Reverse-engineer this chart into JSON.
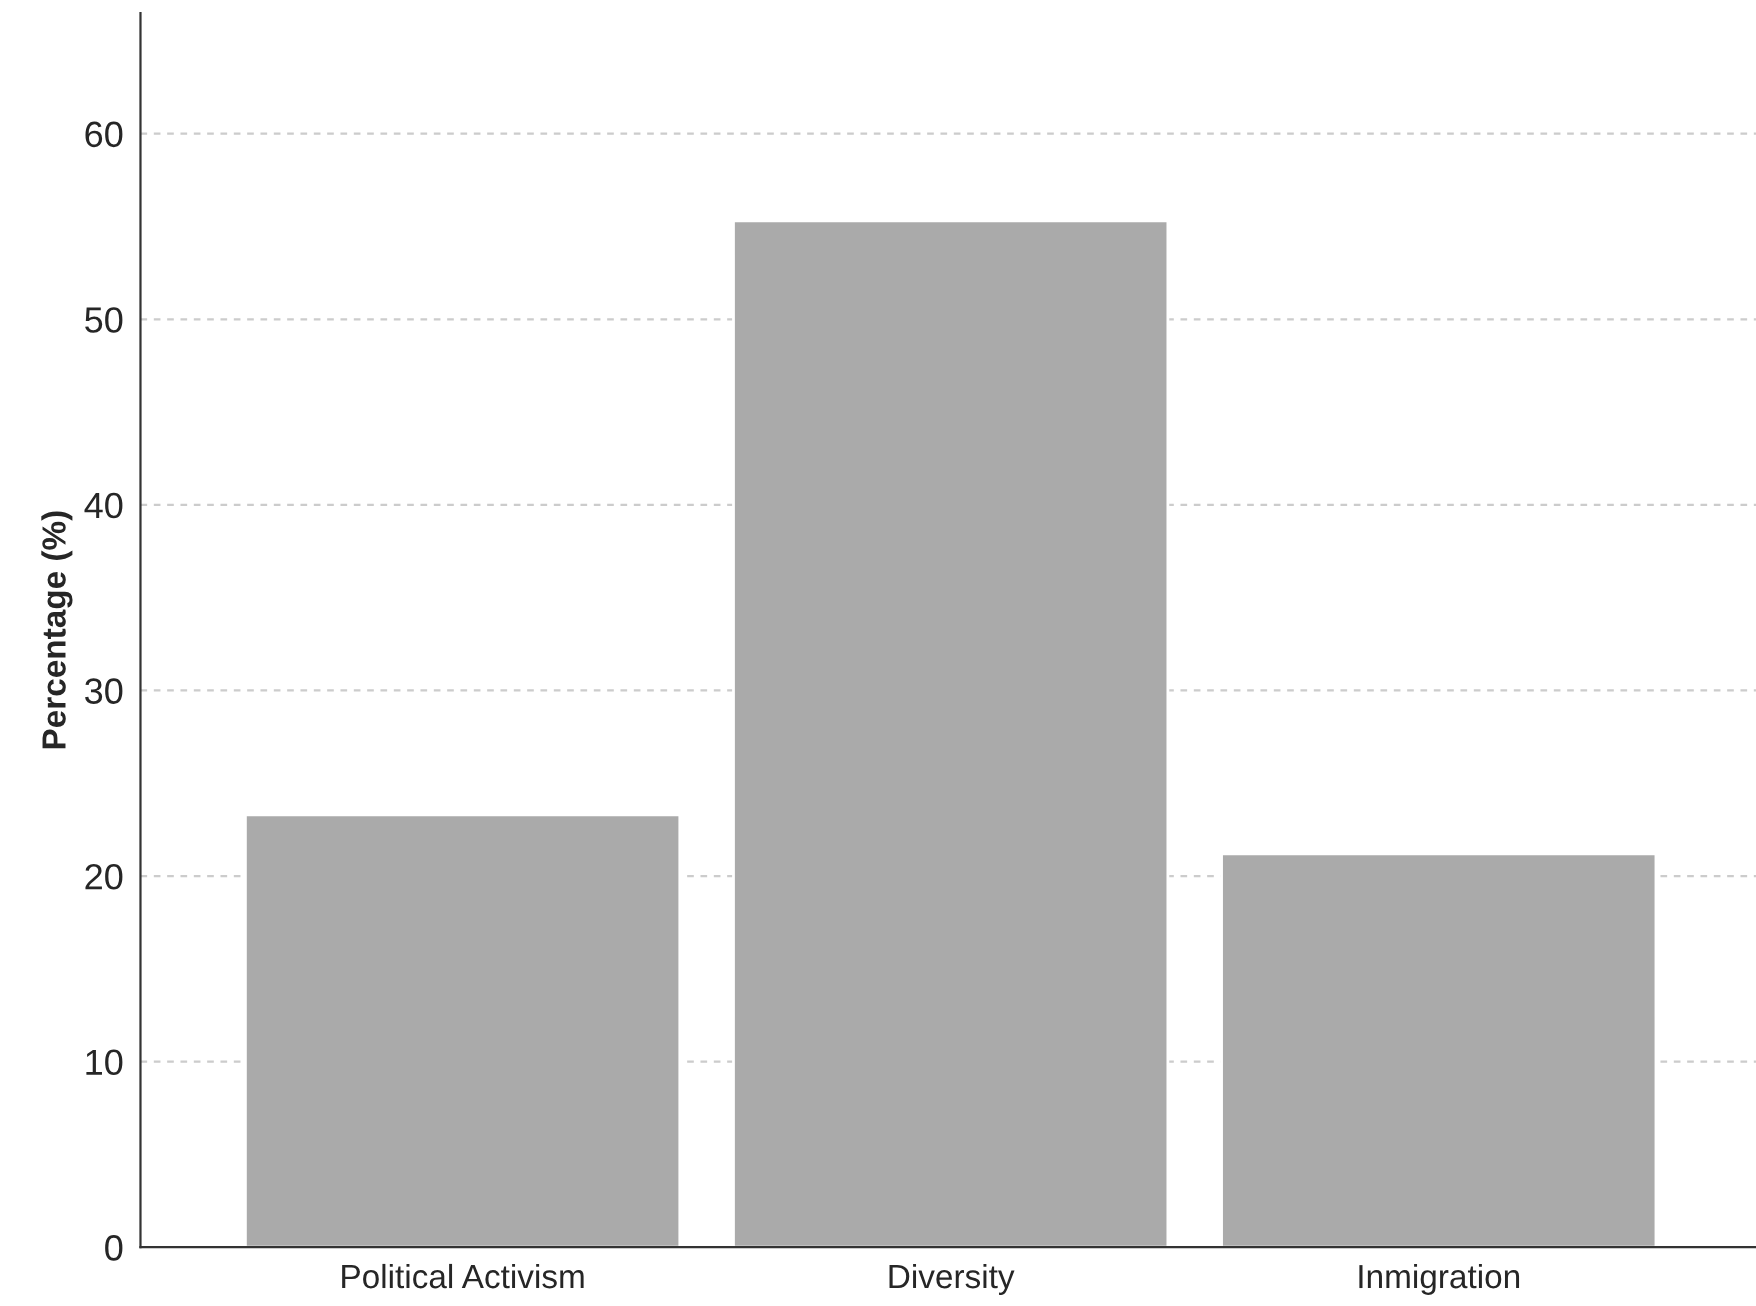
{
  "chart_data": {
    "type": "bar",
    "ylabel": "Percentage (%)",
    "categories": [
      "Political Activism",
      "Diversity",
      "Inmigration"
    ],
    "values": [
      23.3,
      55.3,
      21.2
    ],
    "color": "#aaaaaa",
    "ylim": [
      0,
      66.5
    ],
    "yticks": [
      0,
      10,
      20,
      30,
      40,
      50,
      60
    ],
    "grid": "y"
  }
}
